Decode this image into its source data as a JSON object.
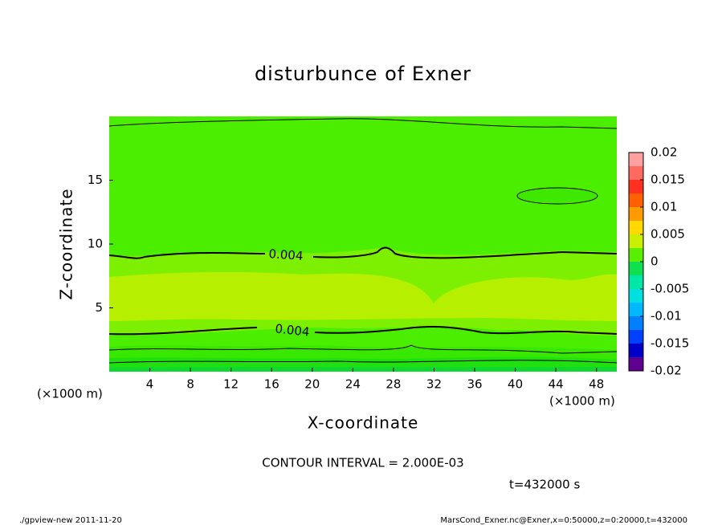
{
  "chart_data": {
    "type": "contour",
    "title": "disturbunce of Exner",
    "xlabel": "X-coordinate",
    "ylabel": "Z-coordinate",
    "x_unit": "(×1000 m)",
    "xlim": [
      0,
      50
    ],
    "xticks": [
      4,
      8,
      12,
      16,
      20,
      24,
      28,
      32,
      36,
      40,
      44,
      48
    ],
    "ylim": [
      0,
      20
    ],
    "yticks": [
      5,
      10,
      15
    ],
    "contour_labels": [
      0.004,
      0.004
    ],
    "colorbar": {
      "lim": [
        -0.02,
        0.02
      ],
      "ticks": [
        0.02,
        0.015,
        0.01,
        0.005,
        0,
        -0.005,
        -0.01,
        -0.015,
        -0.02
      ],
      "colors": [
        "#ffa0a0",
        "#ff6a60",
        "#ff3020",
        "#ff6000",
        "#ff9a00",
        "#ffd800",
        "#c8f000",
        "#58f000",
        "#10e050",
        "#00e8a8",
        "#00e0e0",
        "#00b8ff",
        "#0080ff",
        "#0040ff",
        "#0000c8",
        "#600090"
      ]
    },
    "contour_interval": "CONTOUR INTERVAL = 2.000E-03",
    "time_label": "t=432000 s",
    "footer_left": "./gpview-new   2011-11-20",
    "footer_right": "MarsCond_Exner.nc@Exner,x=0:50000,z=0:20000,t=432000"
  }
}
